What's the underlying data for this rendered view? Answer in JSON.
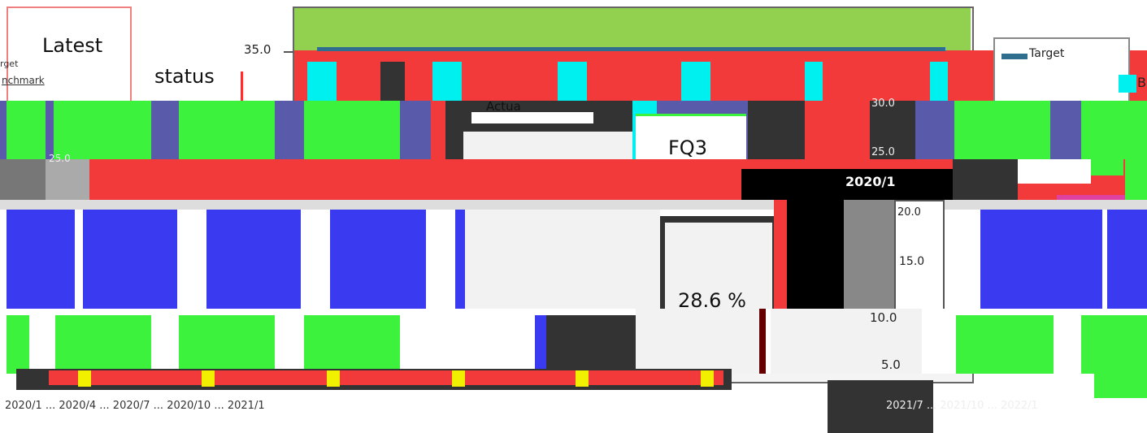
{
  "status_panel": {
    "title_line1": "Latest",
    "title_line2": "status",
    "quarter": "FQ3",
    "percent": "28.6 %"
  },
  "legend_fragments": {
    "target": "Target",
    "benchmark": "Benchmark",
    "benchmark_left": "nchmark",
    "actual": "Actua",
    "b_fragment": "B",
    "target_left": "rget"
  },
  "fragments": {
    "left_tick": "25.0",
    "bottom_dates_left": "2020/1 ... 2020/4 ... 2020/7 ... 2020/10 ... 2021/1",
    "bottom_dates_right": "2021/7 ... 2021/10 ... 2022/1",
    "right_label": "2020/1"
  },
  "colors": {
    "red": "#F23A3A",
    "green": "#3CF23C",
    "green_band": "#92D050",
    "blue": "#3A3AF0",
    "cyan": "#00F0F0",
    "yellow": "#F0F000",
    "dark": "#333333",
    "target_line": "#2F6E8F"
  },
  "chart_data": {
    "type": "line",
    "title": "",
    "xlabel": "",
    "ylabel": "",
    "y_ticks": [
      5.0,
      10.0,
      15.0,
      20.0,
      25.0,
      30.0,
      35.0
    ],
    "y_tick_labels_main": [
      "35.0"
    ],
    "y_tick_labels_right": [
      "30.0",
      "25.0",
      "20.0",
      "15.0",
      "10.0",
      "5.0"
    ],
    "ylim": [
      0,
      35
    ],
    "series": [
      {
        "name": "Target",
        "values": [
          35.0,
          35.0,
          35.0,
          35.0,
          35.0,
          35.0,
          35.0
        ]
      },
      {
        "name": "Actual",
        "values": []
      },
      {
        "name": "Benchmark",
        "values": []
      }
    ]
  }
}
